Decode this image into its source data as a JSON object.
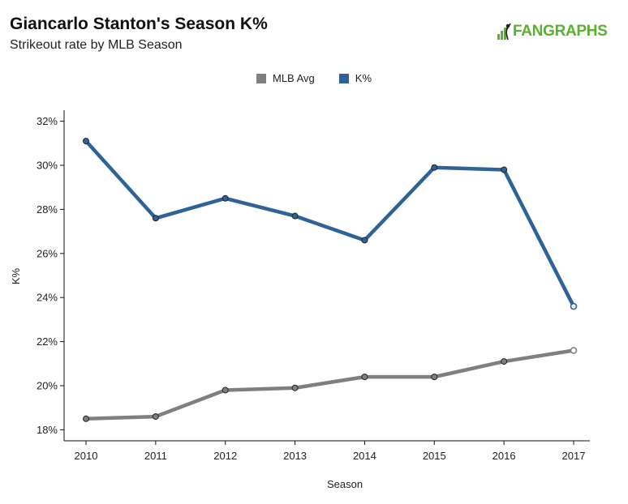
{
  "title": "Giancarlo Stanton's Season K%",
  "subtitle": "Strikeout rate by MLB Season",
  "logo_text": "FANGRAPHS",
  "colors": {
    "mlb_avg": "#7f7f7f",
    "k_pct": "#2e639a",
    "logo": "#5ab030"
  },
  "chart_data": {
    "type": "line",
    "categories": [
      "2010",
      "2011",
      "2012",
      "2013",
      "2014",
      "2015",
      "2016",
      "2017"
    ],
    "series": [
      {
        "name": "MLB Avg",
        "values": [
          18.5,
          18.6,
          19.8,
          19.9,
          20.4,
          20.4,
          21.1,
          21.6
        ]
      },
      {
        "name": "K%",
        "values": [
          31.1,
          27.6,
          28.5,
          27.7,
          26.6,
          29.9,
          29.8,
          23.6
        ]
      }
    ],
    "xlabel": "Season",
    "ylabel": "K%",
    "ylim": [
      17.5,
      32.5
    ],
    "yticks": [
      "18%",
      "20%",
      "22%",
      "24%",
      "26%",
      "28%",
      "30%",
      "32%"
    ],
    "legend_position": "top-center",
    "grid": false
  }
}
